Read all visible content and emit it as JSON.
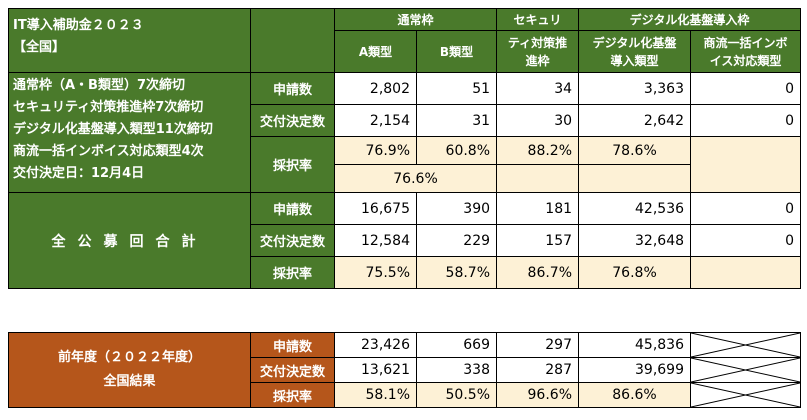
{
  "title": {
    "line1": "IT導入補助金２０２３",
    "line2": "【全国】"
  },
  "headers": {
    "group_normal": "通常枠",
    "group_security_1": "セキュリ",
    "group_security_2": "ティ対策推",
    "group_security_3": "進枠",
    "group_digital": "デジタル化基盤導入枠",
    "type_a": "A類型",
    "type_b": "B類型",
    "digital_type_1": "デジタル化基盤",
    "digital_type_2": "導入類型",
    "invoice_type_1": "商流一括インボ",
    "invoice_type_2": "イス対応類型"
  },
  "section1": {
    "desc": [
      "通常枠（A・B類型）7次締切",
      "セキュリティ対策推進枠7次締切",
      "デジタル化基盤導入類型11次締切",
      "商流一括インボイス対応類型4次",
      "交付決定日：12月4日"
    ],
    "row_labels": {
      "applications": "申請数",
      "decisions": "交付決定数",
      "rate": "採択率"
    },
    "applications": [
      "2,802",
      "51",
      "34",
      "3,363",
      "0"
    ],
    "decisions": [
      "2,154",
      "31",
      "30",
      "2,642",
      "0"
    ],
    "rates": [
      "76.9%",
      "60.8%",
      "88.2%",
      "78.6%"
    ],
    "combined_rate": "76.6%"
  },
  "section2": {
    "label": "全公募回合計",
    "row_labels": {
      "applications": "申請数",
      "decisions": "交付決定数",
      "rate": "採択率"
    },
    "applications": [
      "16,675",
      "390",
      "181",
      "42,536",
      "0"
    ],
    "decisions": [
      "12,584",
      "229",
      "157",
      "32,648",
      "0"
    ],
    "rates": [
      "75.5%",
      "58.7%",
      "86.7%",
      "76.8%"
    ]
  },
  "section3": {
    "label_1": "前年度（２０２２年度）",
    "label_2": "全国結果",
    "row_labels": {
      "applications": "申請数",
      "decisions": "交付決定数",
      "rate": "採択率"
    },
    "applications": [
      "23,426",
      "669",
      "297",
      "45,836"
    ],
    "decisions": [
      "13,621",
      "338",
      "287",
      "39,699"
    ],
    "rates": [
      "58.1%",
      "50.5%",
      "96.6%",
      "86.6%"
    ]
  },
  "colors": {
    "green": "#4a7a2b",
    "orange": "#b5561b",
    "cream": "#fdf1d6"
  }
}
